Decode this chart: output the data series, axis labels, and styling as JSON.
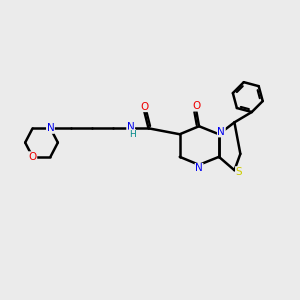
{
  "bg_color": "#ebebeb",
  "atom_colors": {
    "N": "#0000ee",
    "O": "#ee0000",
    "S": "#cccc00",
    "C": "#000000",
    "H": "#008888"
  },
  "bond_color": "#000000",
  "bond_width": 1.8,
  "fig_width": 3.0,
  "fig_height": 3.0,
  "dpi": 100
}
